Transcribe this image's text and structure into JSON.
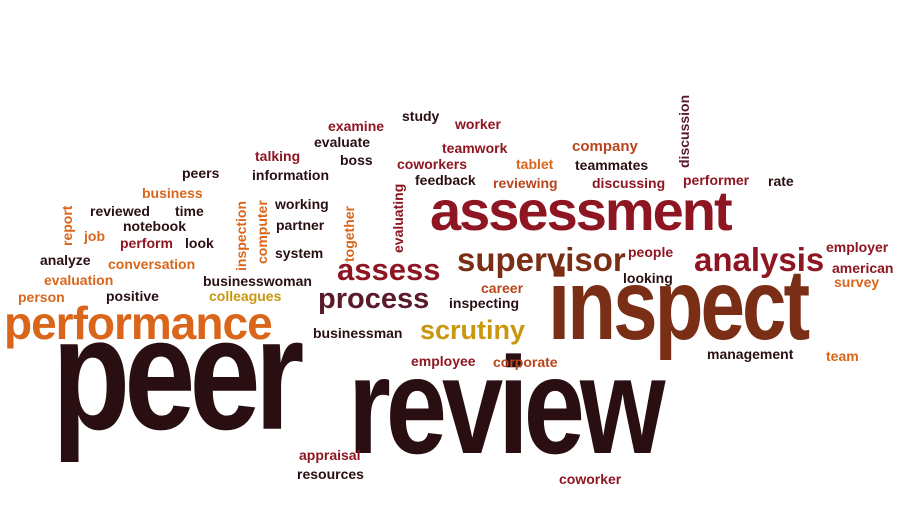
{
  "colors": {
    "dark": "#2a0f12",
    "maroon": "#8e1622",
    "brown": "#7a2e16",
    "orange": "#d9661a",
    "gold": "#c9960f",
    "rust": "#b8451c",
    "plum": "#5a1a2a"
  },
  "words": [
    {
      "text": "peer",
      "color": "dark"
    },
    {
      "text": "review",
      "color": "dark"
    },
    {
      "text": "inspect",
      "color": "brown"
    },
    {
      "text": "assessment",
      "color": "maroon"
    },
    {
      "text": "performance",
      "color": "orange"
    },
    {
      "text": "supervisor",
      "color": "brown"
    },
    {
      "text": "analysis",
      "color": "maroon"
    },
    {
      "text": "assess",
      "color": "maroon"
    },
    {
      "text": "process",
      "color": "plum"
    },
    {
      "text": "scrutiny",
      "color": "gold"
    },
    {
      "text": "examine",
      "color": "maroon"
    },
    {
      "text": "study",
      "color": "dark"
    },
    {
      "text": "worker",
      "color": "maroon"
    },
    {
      "text": "evaluate",
      "color": "dark"
    },
    {
      "text": "teamwork",
      "color": "maroon"
    },
    {
      "text": "company",
      "color": "rust"
    },
    {
      "text": "talking",
      "color": "maroon"
    },
    {
      "text": "boss",
      "color": "dark"
    },
    {
      "text": "coworkers",
      "color": "maroon"
    },
    {
      "text": "tablet",
      "color": "orange"
    },
    {
      "text": "teammates",
      "color": "dark"
    },
    {
      "text": "peers",
      "color": "dark"
    },
    {
      "text": "information",
      "color": "dark"
    },
    {
      "text": "feedback",
      "color": "dark"
    },
    {
      "text": "reviewing",
      "color": "rust"
    },
    {
      "text": "discussing",
      "color": "maroon"
    },
    {
      "text": "performer",
      "color": "maroon"
    },
    {
      "text": "rate",
      "color": "dark"
    },
    {
      "text": "business",
      "color": "orange"
    },
    {
      "text": "reviewed",
      "color": "dark"
    },
    {
      "text": "time",
      "color": "dark"
    },
    {
      "text": "working",
      "color": "dark"
    },
    {
      "text": "notebook",
      "color": "dark"
    },
    {
      "text": "partner",
      "color": "dark"
    },
    {
      "text": "job",
      "color": "orange"
    },
    {
      "text": "perform",
      "color": "maroon"
    },
    {
      "text": "look",
      "color": "dark"
    },
    {
      "text": "system",
      "color": "dark"
    },
    {
      "text": "people",
      "color": "maroon"
    },
    {
      "text": "employer",
      "color": "maroon"
    },
    {
      "text": "analyze",
      "color": "dark"
    },
    {
      "text": "conversation",
      "color": "orange"
    },
    {
      "text": "american",
      "color": "maroon"
    },
    {
      "text": "looking",
      "color": "dark"
    },
    {
      "text": "survey",
      "color": "orange"
    },
    {
      "text": "evaluation",
      "color": "orange"
    },
    {
      "text": "businesswoman",
      "color": "dark"
    },
    {
      "text": "career",
      "color": "rust"
    },
    {
      "text": "person",
      "color": "orange"
    },
    {
      "text": "positive",
      "color": "dark"
    },
    {
      "text": "colleagues",
      "color": "gold"
    },
    {
      "text": "inspecting",
      "color": "dark"
    },
    {
      "text": "businessman",
      "color": "dark"
    },
    {
      "text": "employee",
      "color": "maroon"
    },
    {
      "text": "corporate",
      "color": "rust"
    },
    {
      "text": "management",
      "color": "dark"
    },
    {
      "text": "team",
      "color": "orange"
    },
    {
      "text": "appraisal",
      "color": "maroon"
    },
    {
      "text": "resources",
      "color": "dark"
    },
    {
      "text": "coworker",
      "color": "maroon"
    },
    {
      "text": "discussion",
      "color": "plum"
    },
    {
      "text": "report",
      "color": "orange"
    },
    {
      "text": "inspection",
      "color": "orange"
    },
    {
      "text": "computer",
      "color": "orange"
    },
    {
      "text": "together",
      "color": "orange"
    },
    {
      "text": "evaluating",
      "color": "maroon"
    }
  ]
}
